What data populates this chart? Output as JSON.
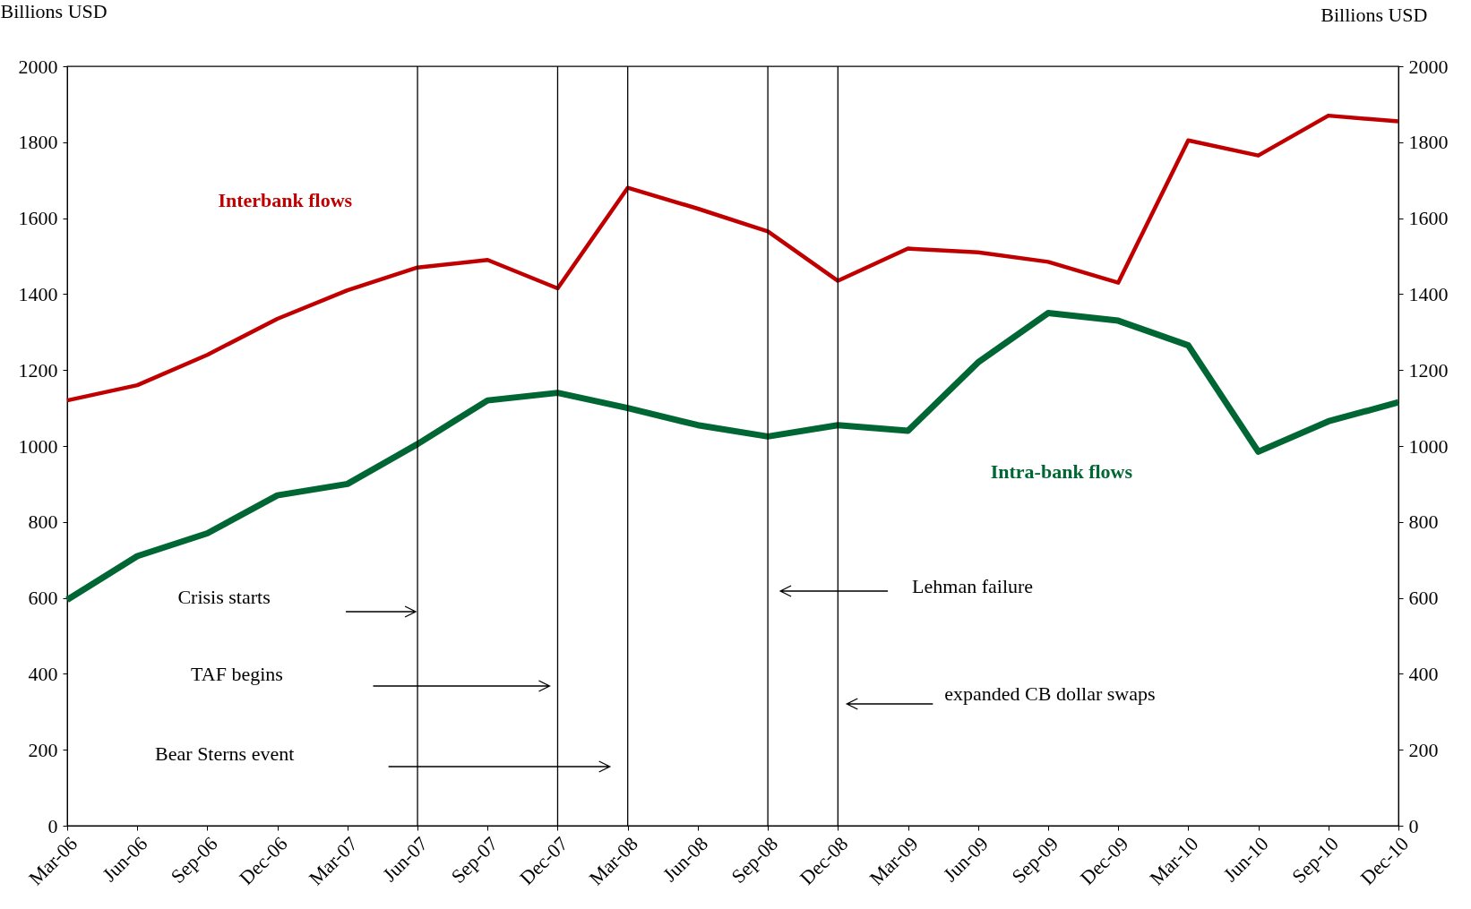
{
  "chart_data": {
    "type": "line",
    "ylabel": "Billions USD",
    "y2label": "Billions USD",
    "categories": [
      "Mar-06",
      "Jun-06",
      "Sep-06",
      "Dec-06",
      "Mar-07",
      "Jun-07",
      "Sep-07",
      "Dec-07",
      "Mar-08",
      "Jun-08",
      "Sep-08",
      "Dec-08",
      "Mar-09",
      "Jun-09",
      "Sep-09",
      "Dec-09",
      "Mar-10",
      "Jun-10",
      "Sep-10",
      "Dec-10"
    ],
    "series": [
      {
        "name": "Interbank flows",
        "color": "#c00000",
        "values": [
          1120,
          1160,
          1240,
          1335,
          1410,
          1470,
          1490,
          1415,
          1680,
          1625,
          1565,
          1435,
          1520,
          1510,
          1485,
          1430,
          1805,
          1765,
          1870,
          1855
        ]
      },
      {
        "name": "Intra-bank flows",
        "color": "#006633",
        "values": [
          595,
          710,
          770,
          870,
          900,
          1005,
          1120,
          1140,
          1100,
          1055,
          1025,
          1055,
          1040,
          1220,
          1350,
          1330,
          1265,
          985,
          1065,
          1115
        ]
      }
    ],
    "ylim": [
      0,
      2000
    ],
    "yticks": [
      0,
      200,
      400,
      600,
      800,
      1000,
      1200,
      1400,
      1600,
      1800,
      2000
    ],
    "y2lim": [
      0,
      2000
    ],
    "y2ticks": [
      0,
      200,
      400,
      600,
      800,
      1000,
      1200,
      1400,
      1600,
      1800,
      2000
    ],
    "ref_lines": [
      {
        "axis": "x",
        "value": "Jun-07"
      },
      {
        "axis": "x",
        "value": "Dec-07"
      },
      {
        "axis": "x",
        "value": "Mar-08"
      },
      {
        "axis": "x",
        "value": "Sep-08"
      },
      {
        "axis": "x",
        "value": "Dec-08"
      }
    ],
    "annotations": [
      "Crisis starts",
      "TAF begins",
      "Bear Sterns event",
      "Lehman failure",
      "expanded CB dollar swaps"
    ],
    "grid": false,
    "legend": false
  }
}
